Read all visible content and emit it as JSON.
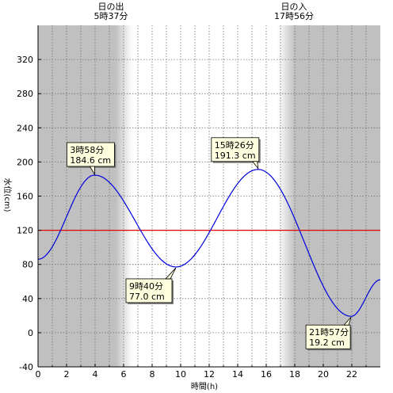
{
  "chart_data": {
    "type": "line",
    "xlabel": "時間(h)",
    "ylabel": "水位(cm)",
    "xlim": [
      0,
      24
    ],
    "ylim": [
      -40,
      360
    ],
    "x_ticks": [
      0,
      2,
      4,
      6,
      8,
      10,
      12,
      14,
      16,
      18,
      20,
      22
    ],
    "y_ticks": [
      -40,
      0,
      40,
      80,
      120,
      160,
      200,
      240,
      280,
      320
    ],
    "reference_line": {
      "value": 120,
      "color": "#e00000"
    },
    "sunrise": {
      "label": "日の出",
      "time_label": "5時37分",
      "hour": 5.617
    },
    "sunset": {
      "label": "日の入",
      "time_label": "17時56分",
      "hour": 17.933
    },
    "series": [
      {
        "color": "#0000dd",
        "x": [
          0,
          3.967,
          9.667,
          15.433,
          21.95,
          24
        ],
        "y": [
          86,
          184.6,
          77.0,
          191.3,
          19.2,
          62
        ]
      }
    ],
    "annotations": [
      {
        "time": "3時58分",
        "value": "184.6 cm",
        "x": 3.967,
        "y": 184.6
      },
      {
        "time": "9時40分",
        "value": "77.0 cm",
        "x": 9.667,
        "y": 77.0
      },
      {
        "time": "15時26分",
        "value": "191.3 cm",
        "x": 15.433,
        "y": 191.3
      },
      {
        "time": "21時57分",
        "value": "19.2 cm",
        "x": 21.95,
        "y": 19.2
      }
    ],
    "colors": {
      "night": "#c0c0c0",
      "day": "#ffffff",
      "grid": "#707070",
      "annotation_bg": "#ffffe0"
    }
  }
}
